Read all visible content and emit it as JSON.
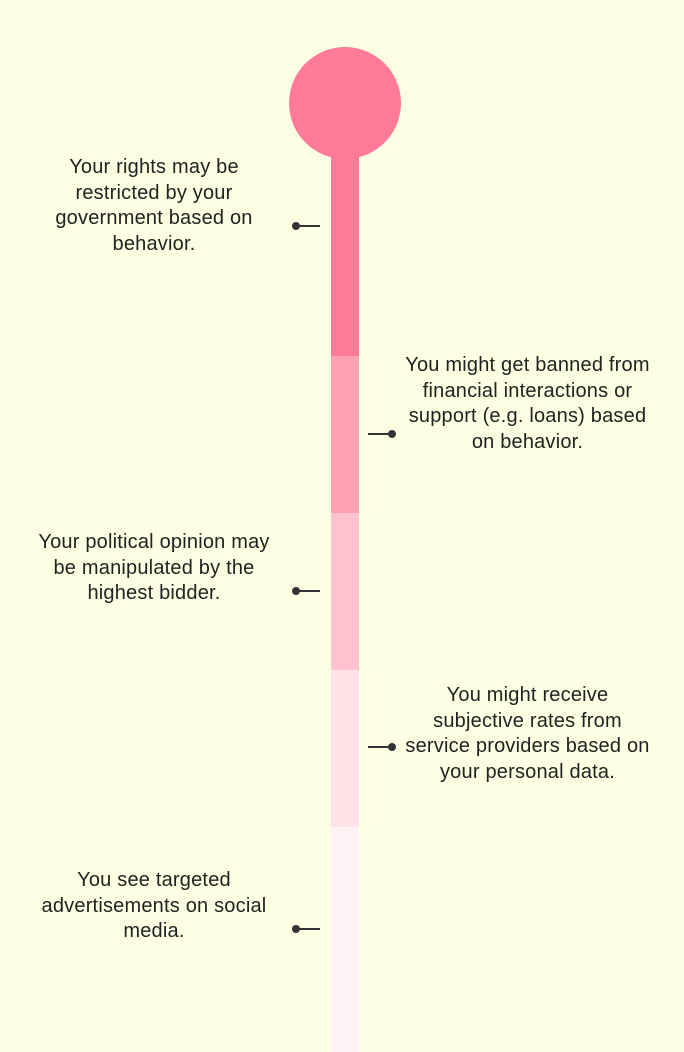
{
  "colors": {
    "background": "#fdffe3",
    "connector": "#333333",
    "text": "#222222",
    "segments": [
      "#ff7a98",
      "#ffa0b3",
      "#ffc3d0",
      "#ffe2e8",
      "#fff2f4"
    ]
  },
  "items": [
    {
      "text": "Your rights may be restricted by your government based on behavior."
    },
    {
      "text": "You might get banned from financial interactions or support (e.g. loans) based on behavior."
    },
    {
      "text": "Your political opinion may be manipulated by the highest bidder."
    },
    {
      "text": "You might receive subjective rates from service providers based on your personal data."
    },
    {
      "text": "You see targeted advertisements on social media."
    }
  ]
}
